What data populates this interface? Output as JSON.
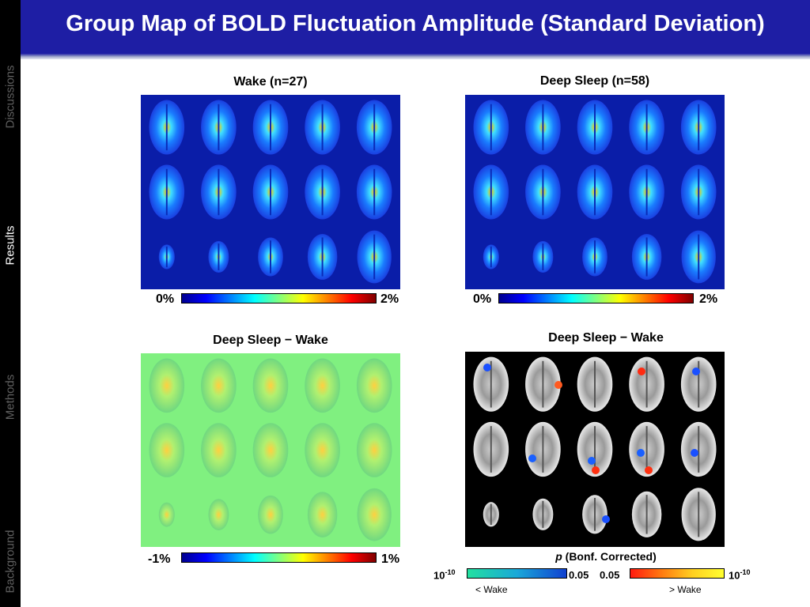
{
  "header": {
    "title": "Group Map of BOLD Fluctuation Amplitude (Standard Deviation)"
  },
  "sidebar": {
    "items": [
      "Discussions",
      "Results",
      "Methods",
      "Background"
    ],
    "active": "Results"
  },
  "panels": {
    "wake": {
      "title": "Wake (n=27)",
      "scale_min": "0%",
      "scale_max": "2%"
    },
    "sleep": {
      "title": "Deep Sleep (n=58)",
      "scale_min": "0%",
      "scale_max": "2%"
    },
    "diff": {
      "title": "Deep Sleep − Wake",
      "scale_min": "-1%",
      "scale_max": "1%"
    },
    "pmap": {
      "title": "Deep Sleep − Wake",
      "p_label_italic": "p",
      "p_label_rest": "(Bonf. Corrected)",
      "left_base": "10",
      "left_exp": "-10",
      "left_end": "0.05",
      "right_start": "0.05",
      "right_base": "10",
      "right_exp": "-10",
      "left_caption": "< Wake",
      "right_caption": "> Wake"
    }
  },
  "colors": {
    "header_bg": "#1e1ea4",
    "map_bg": "#0a1da8",
    "diff_bg": "#80f080",
    "pmap_bg": "#000000"
  }
}
